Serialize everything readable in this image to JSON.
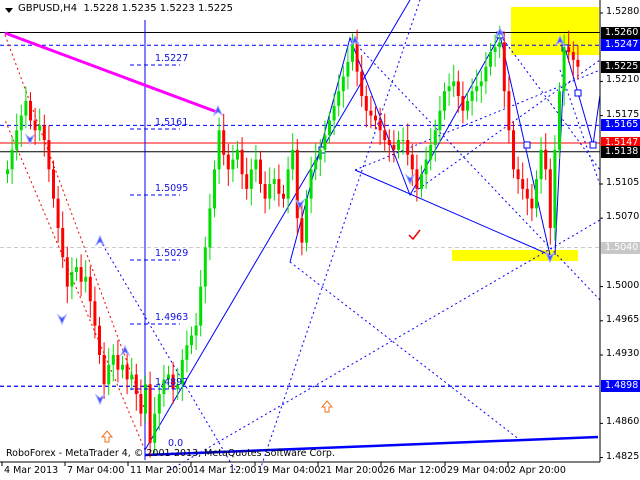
{
  "header": {
    "symbol": "GBPUSD,H4",
    "ohlc": "1.5228 1.5235 1.5223 1.5225"
  },
  "copyright": "RoboForex - MetaTrader 4, © 2001-2013, MetaQuotes Software Corp.",
  "price_axis": {
    "ticks": [
      "1.5280",
      "1.5210",
      "1.5175",
      "1.5105",
      "1.5070",
      "1.5000",
      "1.4965",
      "1.4930",
      "1.4860",
      "1.4825"
    ],
    "labels": [
      {
        "text": "1.5260",
        "price": 1.526,
        "bg": "#000000",
        "fg": "#ffffff"
      },
      {
        "text": "1.5247",
        "price": 1.5247,
        "bg": "#0000ff",
        "fg": "#ffffff"
      },
      {
        "text": "1.5225",
        "price": 1.5225,
        "bg": "#000000",
        "fg": "#ffffff"
      },
      {
        "text": "1.5165",
        "price": 1.5165,
        "bg": "#0000ff",
        "fg": "#ffffff"
      },
      {
        "text": "1.5147",
        "price": 1.5147,
        "bg": "#ff0000",
        "fg": "#ffffff"
      },
      {
        "text": "1.5138",
        "price": 1.5138,
        "bg": "#000000",
        "fg": "#ffffff"
      },
      {
        "text": "1.5040",
        "price": 1.504,
        "bg": "#c8c8c8",
        "fg": "#ffffff"
      },
      {
        "text": "1.4898",
        "price": 1.4898,
        "bg": "#0000ff",
        "fg": "#ffffff"
      }
    ]
  },
  "time_axis": [
    "4 Mar 2013",
    "7 Mar 04:00",
    "11 Mar 20:00",
    "14 Mar 12:00",
    "19 Mar 04:00",
    "21 Mar 20:00",
    "26 Mar 12:00",
    "29 Mar 04:00",
    "2 Apr 20:00"
  ],
  "fib_levels": [
    "1.5227",
    "1.5161",
    "1.5095",
    "1.5029",
    "1.4963",
    "1.4897"
  ],
  "fib_zero": "0.0",
  "colors": {
    "bull": "#00e000",
    "bear": "#ff0000",
    "line": "#0000ff",
    "magenta": "#ff00ff",
    "zone": "#ffff00"
  },
  "chart_data": {
    "type": "candlestick",
    "timeframe": "H4",
    "closes": [
      1.512,
      1.514,
      1.516,
      1.5175,
      1.519,
      1.517,
      1.516,
      1.5165,
      1.515,
      1.512,
      1.509,
      1.506,
      1.503,
      1.5,
      1.5015,
      1.502,
      1.5005,
      1.501,
      1.4985,
      1.496,
      1.493,
      1.49,
      1.492,
      1.493,
      1.4915,
      1.492,
      1.4905,
      1.491,
      1.489,
      1.487,
      1.49,
      1.484,
      1.487,
      1.489,
      1.4905,
      1.491,
      1.4895,
      1.49,
      1.4925,
      1.494,
      1.495,
      1.496,
      1.5,
      1.504,
      1.508,
      1.512,
      1.516,
      1.5135,
      1.512,
      1.513,
      1.514,
      1.5115,
      1.51,
      1.512,
      1.513,
      1.5105,
      1.509,
      1.5105,
      1.511,
      1.5095,
      1.509,
      1.512,
      1.514,
      1.507,
      1.5045,
      1.509,
      1.512,
      1.513,
      1.514,
      1.5155,
      1.517,
      1.5185,
      1.52,
      1.5215,
      1.523,
      1.525,
      1.522,
      1.5195,
      1.518,
      1.5175,
      1.517,
      1.516,
      1.515,
      1.5145,
      1.514,
      1.515,
      1.515,
      1.5135,
      1.512,
      1.51,
      1.5115,
      1.513,
      1.5145,
      1.516,
      1.518,
      1.52,
      1.5205,
      1.521,
      1.5195,
      1.518,
      1.519,
      1.52,
      1.5205,
      1.521,
      1.5225,
      1.524,
      1.5245,
      1.525,
      1.52,
      1.516,
      1.512,
      1.511,
      1.51,
      1.509,
      1.508,
      1.511,
      1.514,
      1.512,
      1.506,
      1.514,
      1.52,
      1.5245,
      1.524,
      1.5232,
      1.5225
    ],
    "last": {
      "open": 1.5228,
      "high": 1.5235,
      "low": 1.5223,
      "close": 1.5225
    },
    "ylim": [
      1.4815,
      1.5293
    ]
  }
}
